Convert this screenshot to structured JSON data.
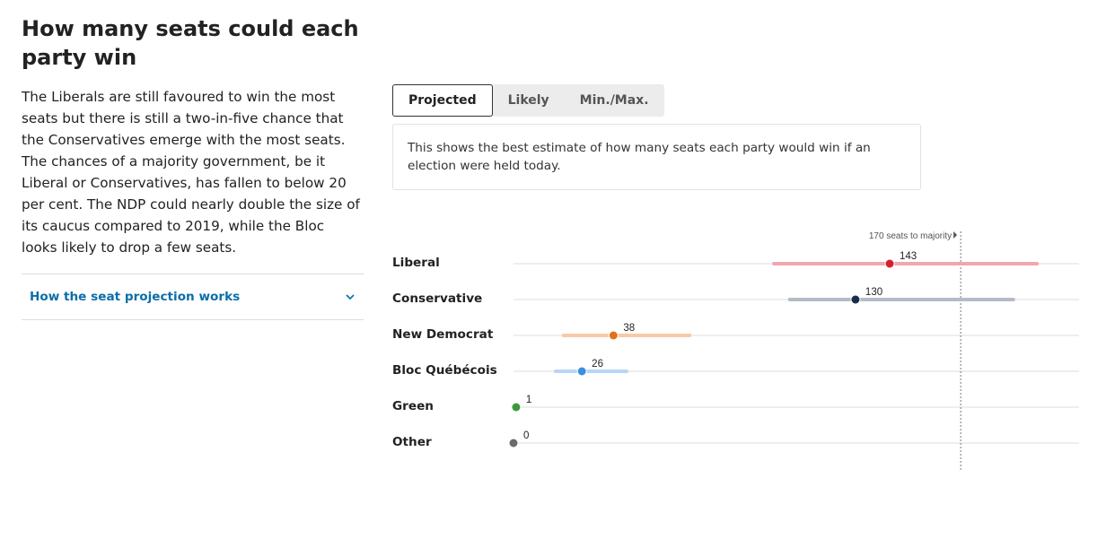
{
  "left": {
    "title": "How many seats could each party win",
    "description": "The Liberals are still favoured to win the most seats but there is still a two-in-five chance that the Conservatives emerge with the most seats. The chances of a majority government, be it Liberal or Conservatives, has fallen to below 20 per cent. The NDP could nearly double the size of its caucus compared to 2019, while the Bloc looks likely to drop a few seats.",
    "accordion_label": "How the seat projection works",
    "accordion_icon": "chevron-down-icon"
  },
  "tabs": [
    {
      "label": "Projected",
      "active": true
    },
    {
      "label": "Likely",
      "active": false
    },
    {
      "label": "Min./Max.",
      "active": false
    }
  ],
  "info_text": "This shows the best estimate of how many seats each party would win if an election were held today.",
  "chart_data": {
    "type": "scatter",
    "xlim": [
      0,
      215
    ],
    "majority": {
      "value": 170,
      "label": "170 seats to majority"
    },
    "series": [
      {
        "name": "Liberal",
        "value": 143,
        "low": 99,
        "high": 199,
        "color": "#d3202f",
        "range_color": "#f2a6ad"
      },
      {
        "name": "Conservative",
        "value": 130,
        "low": 105,
        "high": 190,
        "color": "#1a2b4c",
        "range_color": "#b4bbc6"
      },
      {
        "name": "New Democrat",
        "value": 38,
        "low": 19,
        "high": 67,
        "color": "#e2711d",
        "range_color": "#f8c9a6"
      },
      {
        "name": "Bloc Québécois",
        "value": 26,
        "low": 16,
        "high": 43,
        "color": "#3b8fde",
        "range_color": "#b7d7f4"
      },
      {
        "name": "Green",
        "value": 1,
        "low": 1,
        "high": 1,
        "color": "#3a9a3a",
        "range_color": "#bfe0bf"
      },
      {
        "name": "Other",
        "value": 0,
        "low": 0,
        "high": 0,
        "color": "#6b6b6b",
        "range_color": "#cccccc"
      }
    ]
  }
}
